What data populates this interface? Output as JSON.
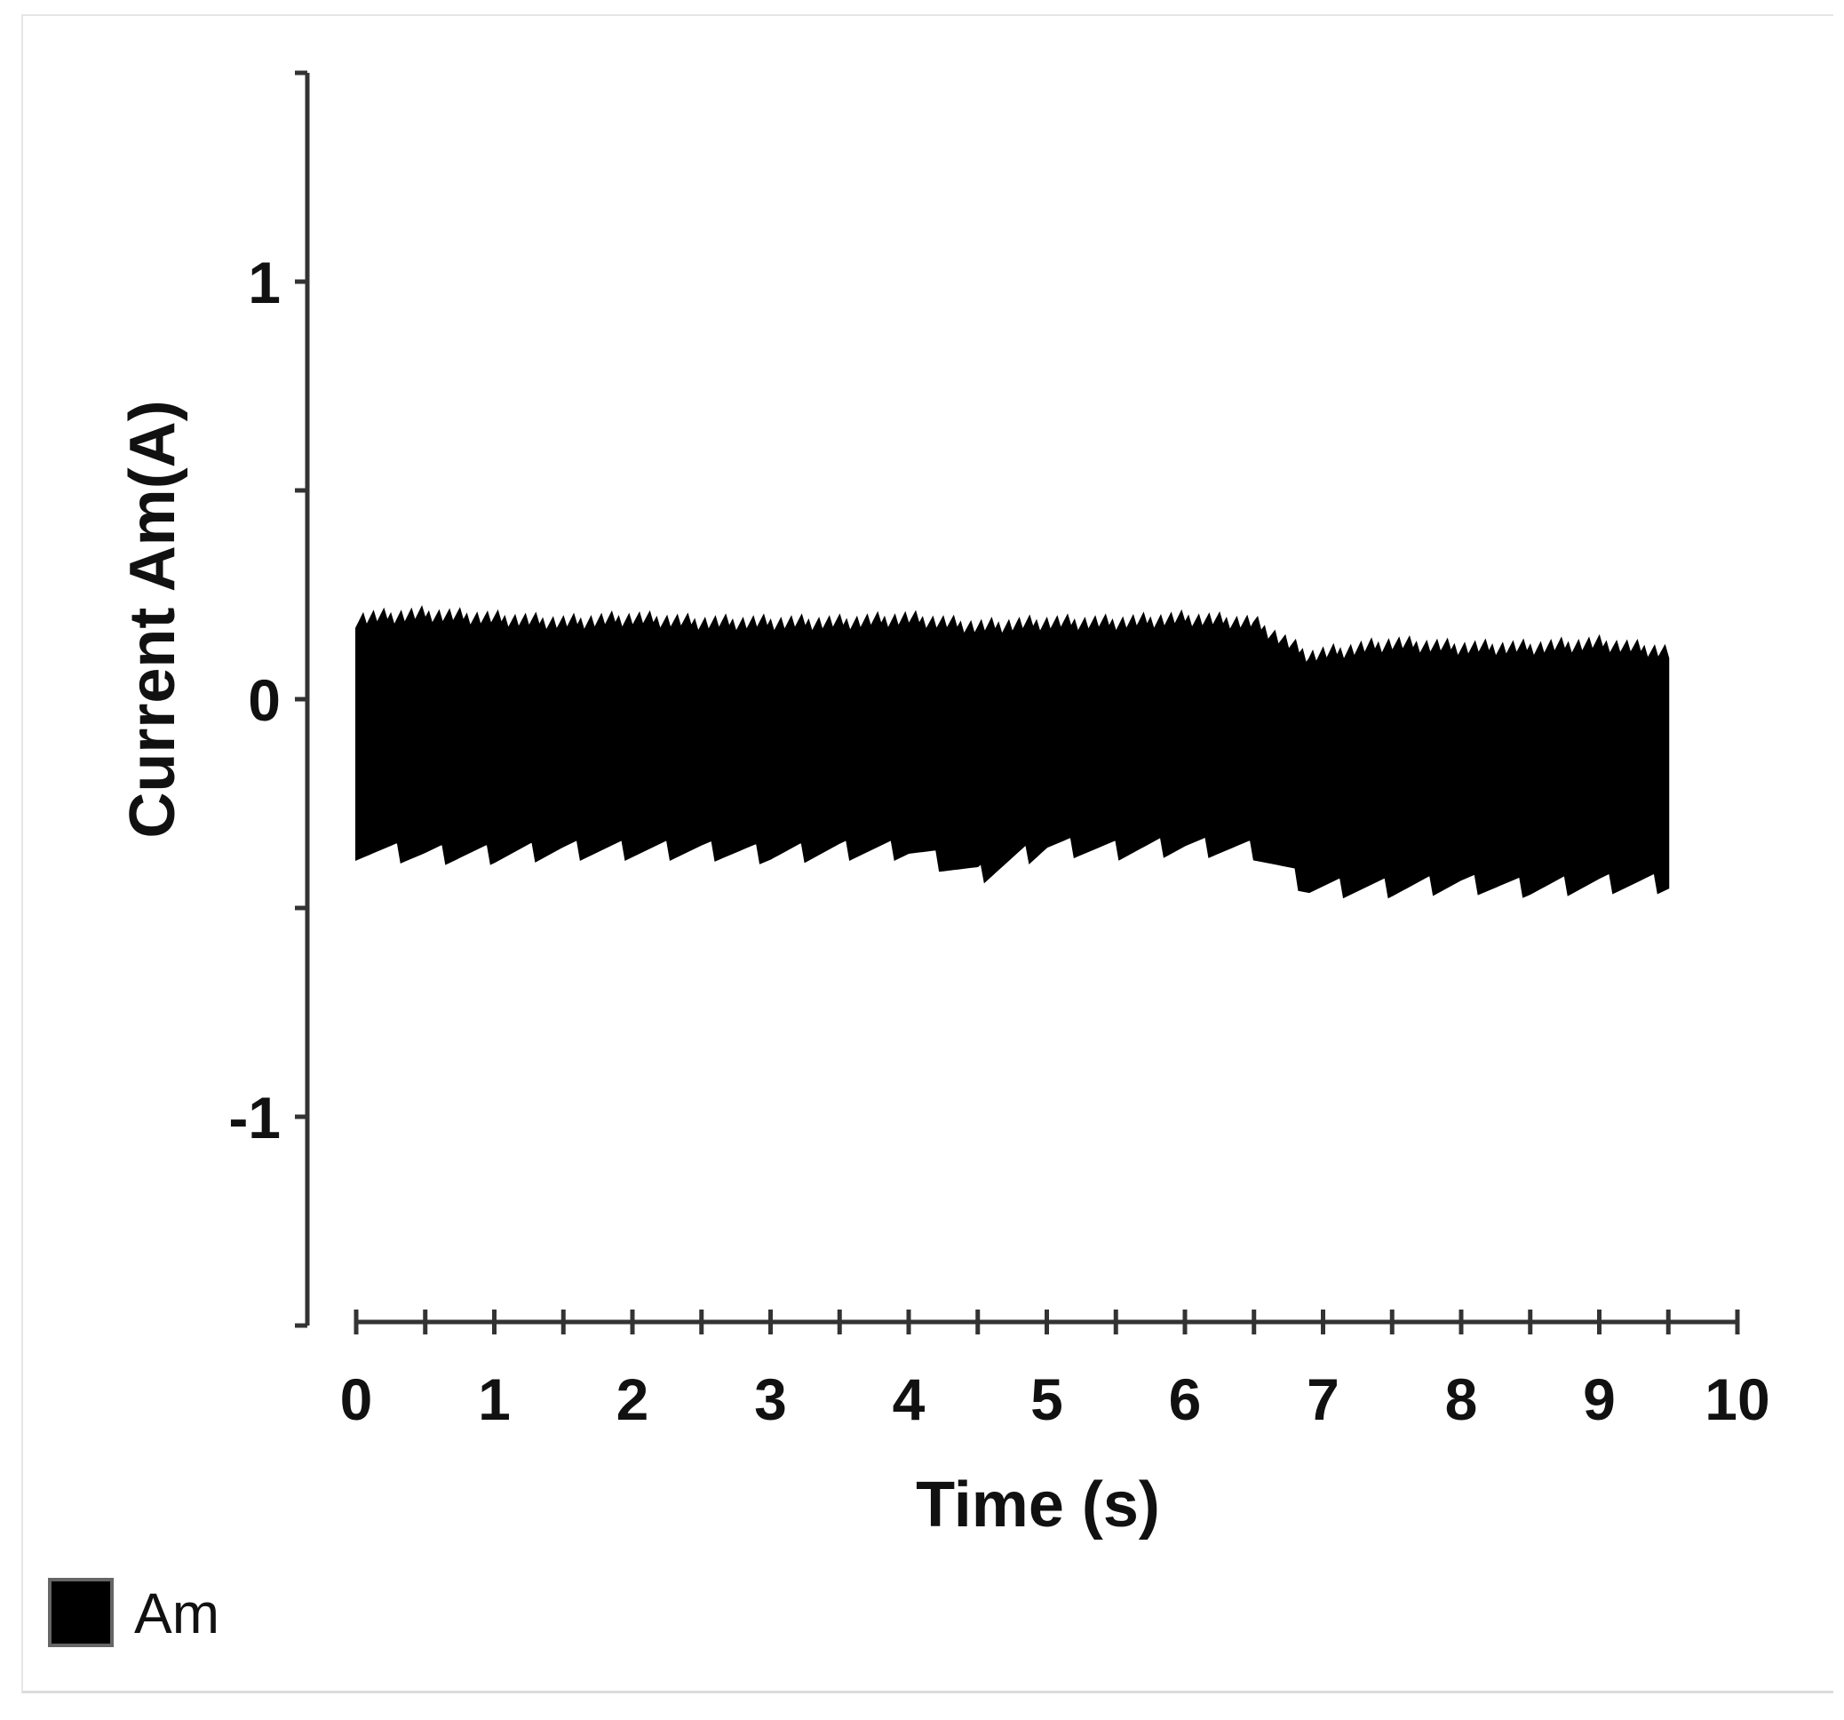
{
  "chart_data": {
    "type": "area",
    "xlabel": "Time (s)",
    "ylabel": "Current Am(A)",
    "xlim": [
      0,
      10
    ],
    "ylim": [
      -1.5,
      1.5
    ],
    "x_ticks": [
      0,
      1,
      2,
      3,
      4,
      5,
      6,
      7,
      8,
      9,
      10
    ],
    "x_tick_labels": [
      "0",
      "1",
      "2",
      "3",
      "4",
      "5",
      "6",
      "7",
      "8",
      "9",
      "10"
    ],
    "y_ticks": [
      1,
      0,
      -1
    ],
    "y_tick_labels": [
      "1",
      "0",
      "-1"
    ],
    "grid": false,
    "legend": {
      "position": "bottom-left",
      "entries": [
        "Am"
      ]
    },
    "series": [
      {
        "name": "Am",
        "color": "#000000",
        "x": [
          0,
          0.5,
          1,
          1.5,
          2,
          2.5,
          3,
          3.5,
          4,
          4.5,
          5,
          5.5,
          6,
          6.5,
          6.9,
          7.5,
          8,
          8.5,
          9,
          9.5
        ],
        "upper": [
          0.19,
          0.2,
          0.19,
          0.18,
          0.19,
          0.18,
          0.18,
          0.18,
          0.19,
          0.17,
          0.18,
          0.18,
          0.19,
          0.18,
          0.1,
          0.13,
          0.12,
          0.12,
          0.13,
          0.11
        ],
        "lower": [
          -0.36,
          -0.37,
          -0.37,
          -0.36,
          -0.36,
          -0.36,
          -0.37,
          -0.36,
          -0.36,
          -0.42,
          -0.35,
          -0.36,
          -0.35,
          -0.36,
          -0.45,
          -0.45,
          -0.44,
          -0.45,
          -0.44,
          -0.44
        ]
      }
    ]
  }
}
